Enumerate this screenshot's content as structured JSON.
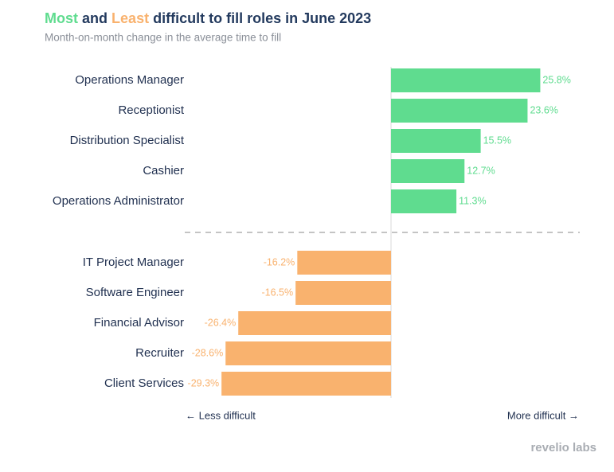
{
  "chart_data": {
    "type": "bar",
    "orientation": "horizontal",
    "title": [
      "and",
      "difficult to fill roles in June 2023"
    ],
    "subtitle": "Month-on-month change in the average time to fill",
    "categories": [
      "Operations Manager",
      "Receptionist",
      "Distribution Specialist",
      "Cashier",
      "Operations Administrator",
      "IT Project Manager",
      "Software Engineer",
      "Financial Advisor",
      "Recruiter",
      "Client Services"
    ],
    "series": [
      {
        "name": "Most",
        "color": "#5fdc8f",
        "values": [
          25.8,
          23.6,
          15.5,
          12.7,
          11.3,
          null,
          null,
          null,
          null,
          null
        ],
        "value_labels": [
          "25.8%",
          "23.6%",
          "15.5%",
          "12.7%",
          "11.3%",
          null,
          null,
          null,
          null,
          null
        ]
      },
      {
        "name": "Least",
        "color": "#f9b26e",
        "values": [
          null,
          null,
          null,
          null,
          null,
          -16.2,
          -16.5,
          -26.4,
          -28.6,
          -29.3
        ],
        "value_labels": [
          null,
          null,
          null,
          null,
          null,
          "-16.2%",
          "-16.5%",
          "-26.4%",
          "-28.6%",
          "-29.3%"
        ]
      }
    ],
    "xlim": [
      -34,
      34
    ],
    "x_left_label": "← Less difficult",
    "x_right_label": "More difficult →",
    "source": "revelio labs"
  }
}
